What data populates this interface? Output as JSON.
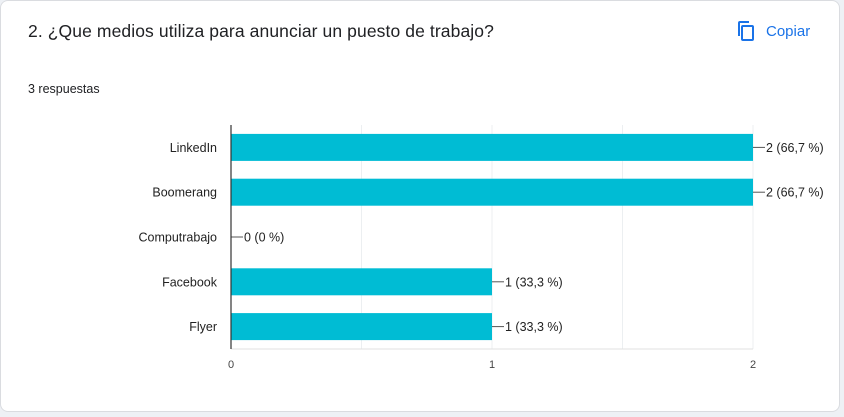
{
  "question": {
    "title": "2. ¿Que medios utiliza para anunciar un puesto de trabajo?",
    "copy_label": "Copiar",
    "copy_icon": "copy-icon",
    "responses_count": "3 respuestas"
  },
  "colors": {
    "bar": "#00bcd4",
    "accent": "#1a73e8"
  },
  "chart_data": {
    "type": "bar",
    "orientation": "horizontal",
    "categories": [
      "LinkedIn",
      "Boomerang",
      "Computrabajo",
      "Facebook",
      "Flyer"
    ],
    "values": [
      2,
      2,
      0,
      1,
      1
    ],
    "data_labels": [
      "2 (66,7 %)",
      "2 (66,7 %)",
      "0 (0 %)",
      "1 (33,3 %)",
      "1 (33,3 %)"
    ],
    "xlim": [
      0,
      2
    ],
    "xticks": [
      0,
      1,
      2
    ],
    "grid": true,
    "legend": "none"
  }
}
